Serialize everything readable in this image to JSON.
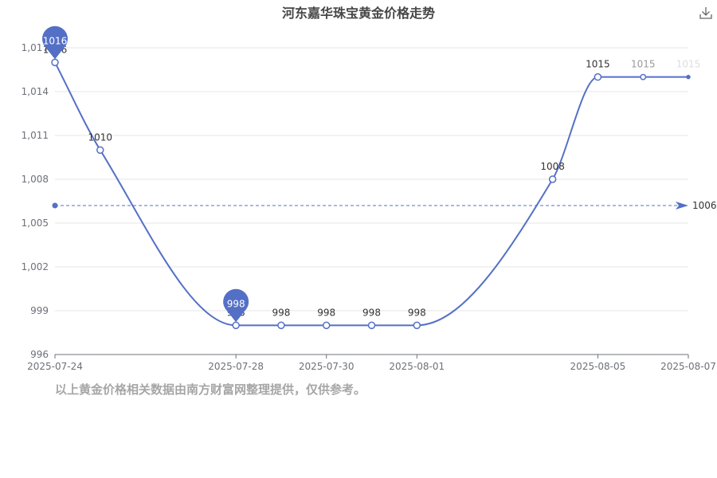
{
  "chart_data": {
    "type": "line",
    "title": "河东嘉华珠宝黄金价格走势",
    "x_tick_labels": [
      "2025-07-24",
      "2025-07-28",
      "2025-07-30",
      "2025-08-01",
      "2025-08-05",
      "2025-08-07"
    ],
    "y_tick_labels": [
      "996",
      "999",
      "1,002",
      "1,005",
      "1,008",
      "1,011",
      "1,014",
      "1,017"
    ],
    "ylim": [
      996,
      1017
    ],
    "grid": true,
    "series": [
      {
        "color": "#5470c6",
        "points": [
          {
            "x": "2025-07-24",
            "y": 1016
          },
          {
            "x": "2025-07-25",
            "y": 1010
          },
          {
            "x": "2025-07-28",
            "y": 998
          },
          {
            "x": "2025-07-29",
            "y": 998
          },
          {
            "x": "2025-07-30",
            "y": 998
          },
          {
            "x": "2025-07-31",
            "y": 998
          },
          {
            "x": "2025-08-01",
            "y": 998
          },
          {
            "x": "2025-08-04",
            "y": 1008
          },
          {
            "x": "2025-08-05",
            "y": 1015
          },
          {
            "x": "2025-08-06",
            "y": 1015
          },
          {
            "x": "2025-08-07",
            "y": 1015
          }
        ]
      }
    ],
    "max_marker": {
      "label": "1016",
      "x": "2025-07-24",
      "y": 1016
    },
    "min_marker": {
      "label": "998",
      "x": "2025-07-28",
      "y": 998
    },
    "average_line": {
      "value": 1006.2,
      "label": "1006"
    }
  },
  "footnote": "以上黄金价格相关数据由南方财富网整理提供，仅供参考。",
  "icons": {
    "download": "download-icon"
  }
}
